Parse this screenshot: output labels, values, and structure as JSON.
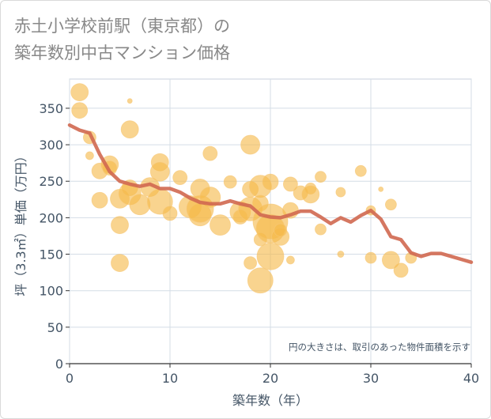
{
  "title_lines": [
    "赤土小学校前駅（東京都）の",
    "築年数別中古マンション価格"
  ],
  "chart_data": {
    "type": "scatter",
    "title": "赤土小学校前駅（東京都）の築年数別中古マンション価格",
    "xlabel": "築年数（年）",
    "ylabel": "坪（3.3㎡）単価（万円）",
    "xlim": [
      0,
      40
    ],
    "ylim": [
      0,
      390
    ],
    "xticks": [
      0,
      10,
      20,
      30,
      40
    ],
    "yticks": [
      0,
      50,
      100,
      150,
      200,
      250,
      300,
      350
    ],
    "grid": true,
    "annotation": "円の大きさは、取引のあった物件面積を示す",
    "bubble_color": "#f5b94a",
    "line_color": "#d06850",
    "series": [
      {
        "type": "bubble",
        "points": [
          {
            "x": 1,
            "y": 372,
            "s": 11
          },
          {
            "x": 1,
            "y": 347,
            "s": 10
          },
          {
            "x": 2,
            "y": 310,
            "s": 8
          },
          {
            "x": 2,
            "y": 285,
            "s": 5
          },
          {
            "x": 3,
            "y": 264,
            "s": 10
          },
          {
            "x": 3,
            "y": 224,
            "s": 10
          },
          {
            "x": 4,
            "y": 273,
            "s": 11
          },
          {
            "x": 4,
            "y": 268,
            "s": 9
          },
          {
            "x": 5,
            "y": 226,
            "s": 12
          },
          {
            "x": 5,
            "y": 190,
            "s": 11
          },
          {
            "x": 5,
            "y": 138,
            "s": 11
          },
          {
            "x": 6,
            "y": 321,
            "s": 11
          },
          {
            "x": 6,
            "y": 241,
            "s": 10
          },
          {
            "x": 6,
            "y": 233,
            "s": 14
          },
          {
            "x": 6,
            "y": 360,
            "s": 3
          },
          {
            "x": 7,
            "y": 218,
            "s": 13
          },
          {
            "x": 8,
            "y": 242,
            "s": 12
          },
          {
            "x": 9,
            "y": 276,
            "s": 11
          },
          {
            "x": 9,
            "y": 263,
            "s": 12
          },
          {
            "x": 9,
            "y": 222,
            "s": 16
          },
          {
            "x": 10,
            "y": 206,
            "s": 9
          },
          {
            "x": 11,
            "y": 255,
            "s": 9
          },
          {
            "x": 12,
            "y": 215,
            "s": 14
          },
          {
            "x": 13,
            "y": 240,
            "s": 12
          },
          {
            "x": 13,
            "y": 204,
            "s": 14
          },
          {
            "x": 13,
            "y": 212,
            "s": 17
          },
          {
            "x": 14,
            "y": 288,
            "s": 9
          },
          {
            "x": 14,
            "y": 228,
            "s": 13
          },
          {
            "x": 15,
            "y": 190,
            "s": 13
          },
          {
            "x": 16,
            "y": 249,
            "s": 8
          },
          {
            "x": 17,
            "y": 208,
            "s": 13
          },
          {
            "x": 17,
            "y": 201,
            "s": 9
          },
          {
            "x": 18,
            "y": 300,
            "s": 12
          },
          {
            "x": 18,
            "y": 239,
            "s": 10
          },
          {
            "x": 18,
            "y": 212,
            "s": 15
          },
          {
            "x": 18,
            "y": 138,
            "s": 8
          },
          {
            "x": 19,
            "y": 243,
            "s": 14
          },
          {
            "x": 19,
            "y": 220,
            "s": 10
          },
          {
            "x": 19,
            "y": 170,
            "s": 8
          },
          {
            "x": 19,
            "y": 114,
            "s": 16
          },
          {
            "x": 20,
            "y": 249,
            "s": 10
          },
          {
            "x": 20,
            "y": 195,
            "s": 22
          },
          {
            "x": 20,
            "y": 185,
            "s": 18
          },
          {
            "x": 20,
            "y": 147,
            "s": 17
          },
          {
            "x": 21,
            "y": 174,
            "s": 11
          },
          {
            "x": 21,
            "y": 183,
            "s": 8
          },
          {
            "x": 22,
            "y": 246,
            "s": 9
          },
          {
            "x": 22,
            "y": 142,
            "s": 5
          },
          {
            "x": 22,
            "y": 210,
            "s": 10
          },
          {
            "x": 23,
            "y": 234,
            "s": 9
          },
          {
            "x": 24,
            "y": 240,
            "s": 7
          },
          {
            "x": 24,
            "y": 232,
            "s": 11
          },
          {
            "x": 25,
            "y": 256,
            "s": 7
          },
          {
            "x": 25,
            "y": 184,
            "s": 7
          },
          {
            "x": 27,
            "y": 235,
            "s": 6
          },
          {
            "x": 27,
            "y": 150,
            "s": 4
          },
          {
            "x": 29,
            "y": 264,
            "s": 7
          },
          {
            "x": 30,
            "y": 210,
            "s": 6
          },
          {
            "x": 30,
            "y": 145,
            "s": 7
          },
          {
            "x": 31,
            "y": 239,
            "s": 3
          },
          {
            "x": 32,
            "y": 218,
            "s": 7
          },
          {
            "x": 32,
            "y": 142,
            "s": 11
          },
          {
            "x": 33,
            "y": 128,
            "s": 9
          },
          {
            "x": 34,
            "y": 145,
            "s": 7
          }
        ]
      },
      {
        "type": "line",
        "x": [
          0,
          1,
          2,
          3,
          4,
          5,
          6,
          7,
          8,
          9,
          10,
          11,
          12,
          13,
          14,
          15,
          16,
          17,
          18,
          19,
          20,
          21,
          22,
          23,
          24,
          25,
          26,
          27,
          28,
          29,
          30,
          31,
          32,
          33,
          34,
          35,
          36,
          37,
          38,
          39,
          40
        ],
        "y": [
          327,
          320,
          316,
          287,
          263,
          250,
          246,
          243,
          246,
          240,
          240,
          235,
          227,
          221,
          219,
          219,
          223,
          219,
          216,
          204,
          201,
          200,
          204,
          209,
          209,
          201,
          192,
          200,
          194,
          203,
          210,
          198,
          174,
          170,
          152,
          147,
          151,
          151,
          147,
          143,
          139
        ]
      }
    ]
  }
}
